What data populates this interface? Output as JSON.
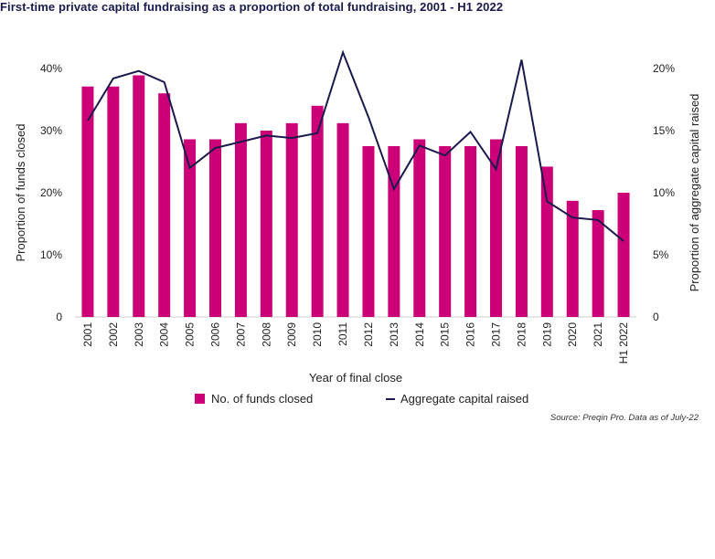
{
  "title": "First-time private capital fundraising as a proportion of total fundraising, 2001 - H1 2022",
  "source": "Source: Preqin Pro. Data as of July-22",
  "colors": {
    "bar": "#cc0077",
    "line": "#1a1a4e",
    "axis": "#cccccc"
  },
  "chart_data": {
    "type": "bar",
    "categories": [
      "2001",
      "2002",
      "2003",
      "2004",
      "2005",
      "2006",
      "2007",
      "2008",
      "2009",
      "2010",
      "2011",
      "2012",
      "2013",
      "2014",
      "2015",
      "2016",
      "2017",
      "2018",
      "2019",
      "2020",
      "2021",
      "H1 2022"
    ],
    "xlabel": "Year of final close",
    "ylabel": "Proportion of funds closed",
    "ylabel_right": "Proportion of aggregate capital raised",
    "ylim": [
      0,
      40
    ],
    "ylim_right": [
      0,
      20
    ],
    "yticks": [
      "0",
      "10%",
      "20%",
      "30%",
      "40%"
    ],
    "yticks_right": [
      "0",
      "5%",
      "10%",
      "15%",
      "20%"
    ],
    "series": [
      {
        "name": "No. of funds closed",
        "type": "bar",
        "axis": "left",
        "values": [
          37.1,
          37.1,
          38.9,
          36.0,
          28.6,
          28.6,
          31.2,
          30.0,
          31.2,
          34.0,
          31.2,
          27.5,
          27.5,
          28.6,
          27.5,
          27.5,
          28.6,
          27.5,
          24.2,
          18.7,
          17.2,
          20.0
        ]
      },
      {
        "name": "Aggregate capital raised",
        "type": "line",
        "axis": "right",
        "values": [
          15.8,
          19.2,
          19.8,
          18.9,
          12.0,
          13.6,
          14.1,
          14.6,
          14.4,
          14.8,
          21.3,
          16.1,
          10.3,
          13.8,
          13.0,
          14.9,
          11.9,
          20.7,
          9.3,
          8.0,
          7.8,
          6.1
        ]
      }
    ],
    "legend_position": "bottom"
  }
}
